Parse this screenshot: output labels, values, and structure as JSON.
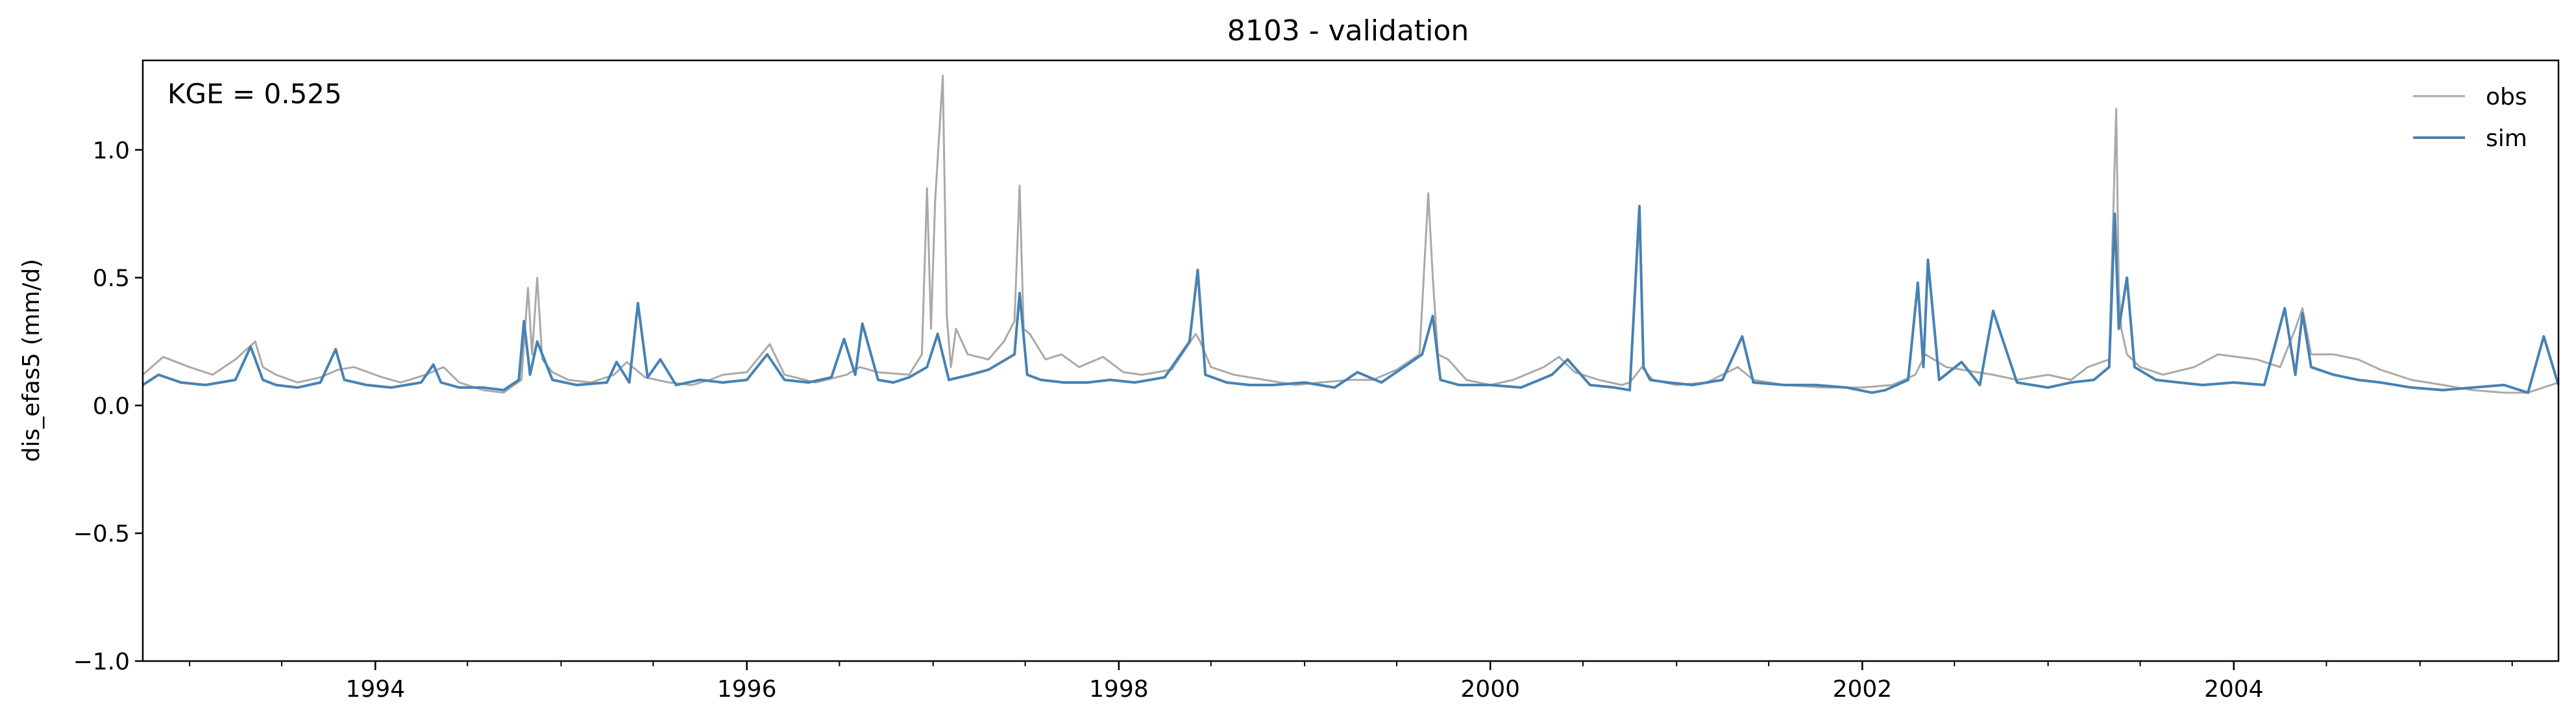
{
  "chart_data": {
    "type": "line",
    "title": "8103 - validation",
    "xlabel": "",
    "ylabel": "dis_efas5 (mm/d)",
    "annotation": "KGE = 0.525",
    "xlim": [
      "1992-10-01",
      "2005-09-30"
    ],
    "ylim": [
      -1.0,
      1.35
    ],
    "x_ticks": [
      {
        "date": "1994-01-01",
        "label": "1994"
      },
      {
        "date": "1996-01-01",
        "label": "1996"
      },
      {
        "date": "1998-01-01",
        "label": "1998"
      },
      {
        "date": "2000-01-01",
        "label": "2000"
      },
      {
        "date": "2002-01-01",
        "label": "2002"
      },
      {
        "date": "2004-01-01",
        "label": "2004"
      }
    ],
    "y_ticks": [
      {
        "value": -1.0,
        "label": "−1.0"
      },
      {
        "value": -0.5,
        "label": "−0.5"
      },
      {
        "value": 0.0,
        "label": "0.0"
      },
      {
        "value": 0.5,
        "label": "0.5"
      },
      {
        "value": 1.0,
        "label": "1.0"
      }
    ],
    "grid": false,
    "legend_position": "top-right",
    "series": [
      {
        "name": "obs",
        "color": "#a9a9a9",
        "x": [
          "1992-10-01",
          "1992-11-10",
          "1993-01-01",
          "1993-02-15",
          "1993-04-01",
          "1993-05-10",
          "1993-05-25",
          "1993-06-20",
          "1993-08-01",
          "1993-09-15",
          "1993-10-20",
          "1993-11-20",
          "1994-01-15",
          "1994-02-20",
          "1994-04-10",
          "1994-05-15",
          "1994-06-15",
          "1994-08-01",
          "1994-09-10",
          "1994-10-15",
          "1994-10-28",
          "1994-11-05",
          "1994-11-15",
          "1994-11-25",
          "1994-12-15",
          "1995-01-15",
          "1995-03-01",
          "1995-04-15",
          "1995-05-10",
          "1995-06-15",
          "1995-08-01",
          "1995-09-15",
          "1995-10-20",
          "1995-11-15",
          "1996-01-01",
          "1996-02-15",
          "1996-03-15",
          "1996-05-15",
          "1996-07-15",
          "1996-08-10",
          "1996-09-15",
          "1996-11-15",
          "1996-12-10",
          "1996-12-20",
          "1996-12-28",
          "1997-01-05",
          "1997-01-20",
          "1997-01-28",
          "1997-02-05",
          "1997-02-15",
          "1997-03-10",
          "1997-04-20",
          "1997-05-20",
          "1997-06-10",
          "1997-06-20",
          "1997-06-28",
          "1997-07-10",
          "1997-08-10",
          "1997-09-10",
          "1997-10-15",
          "1997-12-01",
          "1998-01-10",
          "1998-02-15",
          "1998-04-15",
          "1998-06-01",
          "1998-06-10",
          "1998-07-01",
          "1998-08-15",
          "1998-10-15",
          "1998-12-15",
          "1999-02-01",
          "1999-04-01",
          "1999-05-15",
          "1999-07-01",
          "1999-08-15",
          "1999-09-01",
          "1999-09-10",
          "1999-09-20",
          "1999-10-10",
          "1999-11-15",
          "2000-01-01",
          "2000-02-15",
          "2000-04-15",
          "2000-05-15",
          "2000-06-15",
          "2000-08-01",
          "2000-09-15",
          "2000-10-01",
          "2000-10-25",
          "2000-11-15",
          "2001-01-01",
          "2001-03-01",
          "2001-05-01",
          "2001-06-01",
          "2001-08-01",
          "2001-10-15",
          "2002-01-01",
          "2002-03-01",
          "2002-04-15",
          "2002-05-05",
          "2002-06-15",
          "2002-08-15",
          "2002-09-15",
          "2002-11-01",
          "2003-01-01",
          "2003-02-15",
          "2003-03-20",
          "2003-05-01",
          "2003-05-15",
          "2003-05-20",
          "2003-05-25",
          "2003-06-05",
          "2003-07-01",
          "2003-08-15",
          "2003-10-15",
          "2003-12-01",
          "2004-02-15",
          "2004-04-01",
          "2004-05-01",
          "2004-05-15",
          "2004-06-01",
          "2004-07-15",
          "2004-09-01",
          "2004-10-15",
          "2004-12-15",
          "2005-02-15",
          "2005-04-15",
          "2005-06-15",
          "2005-08-01",
          "2005-09-30"
        ],
        "values": [
          0.12,
          0.19,
          0.15,
          0.12,
          0.18,
          0.25,
          0.15,
          0.12,
          0.09,
          0.11,
          0.14,
          0.15,
          0.11,
          0.09,
          0.12,
          0.15,
          0.09,
          0.06,
          0.05,
          0.1,
          0.46,
          0.2,
          0.5,
          0.18,
          0.13,
          0.1,
          0.09,
          0.12,
          0.17,
          0.11,
          0.09,
          0.08,
          0.1,
          0.12,
          0.13,
          0.24,
          0.12,
          0.09,
          0.12,
          0.15,
          0.13,
          0.12,
          0.2,
          0.85,
          0.3,
          0.8,
          1.29,
          0.35,
          0.15,
          0.3,
          0.2,
          0.18,
          0.25,
          0.33,
          0.86,
          0.3,
          0.28,
          0.18,
          0.2,
          0.15,
          0.19,
          0.13,
          0.12,
          0.14,
          0.28,
          0.25,
          0.15,
          0.12,
          0.1,
          0.08,
          0.09,
          0.1,
          0.1,
          0.14,
          0.2,
          0.83,
          0.5,
          0.2,
          0.18,
          0.1,
          0.08,
          0.1,
          0.15,
          0.19,
          0.13,
          0.1,
          0.08,
          0.09,
          0.15,
          0.1,
          0.08,
          0.09,
          0.15,
          0.1,
          0.08,
          0.07,
          0.07,
          0.08,
          0.12,
          0.2,
          0.15,
          0.13,
          0.12,
          0.1,
          0.12,
          0.1,
          0.15,
          0.18,
          1.16,
          0.45,
          0.3,
          0.2,
          0.15,
          0.12,
          0.15,
          0.2,
          0.18,
          0.15,
          0.3,
          0.38,
          0.2,
          0.2,
          0.18,
          0.14,
          0.1,
          0.08,
          0.06,
          0.05,
          0.05,
          0.09
        ]
      },
      {
        "name": "sim",
        "color": "#4682b4",
        "x": [
          "1992-10-01",
          "1992-11-01",
          "1992-12-15",
          "1993-02-01",
          "1993-04-01",
          "1993-05-01",
          "1993-05-25",
          "1993-06-20",
          "1993-08-01",
          "1993-09-15",
          "1993-10-15",
          "1993-11-01",
          "1993-12-15",
          "1994-02-01",
          "1994-04-01",
          "1994-04-25",
          "1994-05-10",
          "1994-06-15",
          "1994-08-01",
          "1994-09-10",
          "1994-10-10",
          "1994-10-20",
          "1994-11-01",
          "1994-11-15",
          "1994-12-15",
          "1995-02-01",
          "1995-04-01",
          "1995-04-20",
          "1995-05-15",
          "1995-06-01",
          "1995-06-20",
          "1995-07-15",
          "1995-08-15",
          "1995-10-01",
          "1995-11-15",
          "1996-01-01",
          "1996-02-10",
          "1996-03-15",
          "1996-05-01",
          "1996-06-15",
          "1996-07-10",
          "1996-08-01",
          "1996-08-15",
          "1996-09-15",
          "1996-10-15",
          "1996-11-15",
          "1996-12-20",
          "1997-01-10",
          "1997-02-01",
          "1997-03-15",
          "1997-04-20",
          "1997-06-10",
          "1997-06-20",
          "1997-07-05",
          "1997-08-01",
          "1997-09-15",
          "1997-11-01",
          "1997-12-15",
          "1998-02-01",
          "1998-04-01",
          "1998-05-20",
          "1998-06-05",
          "1998-06-20",
          "1998-08-01",
          "1998-09-15",
          "1998-11-01",
          "1999-01-01",
          "1999-03-01",
          "1999-04-15",
          "1999-06-01",
          "1999-07-15",
          "1999-08-20",
          "1999-09-10",
          "1999-09-25",
          "1999-11-01",
          "2000-01-01",
          "2000-03-01",
          "2000-05-01",
          "2000-06-01",
          "2000-07-15",
          "2000-09-01",
          "2000-10-01",
          "2000-10-20",
          "2000-10-28",
          "2000-11-10",
          "2000-12-15",
          "2001-02-01",
          "2001-04-01",
          "2001-05-10",
          "2001-06-01",
          "2001-08-01",
          "2001-10-01",
          "2001-12-01",
          "2002-01-20",
          "2002-02-15",
          "2002-04-01",
          "2002-04-20",
          "2002-05-01",
          "2002-05-10",
          "2002-06-01",
          "2002-07-15",
          "2002-08-20",
          "2002-09-15",
          "2002-11-01",
          "2003-01-01",
          "2003-02-15",
          "2003-04-01",
          "2003-05-01",
          "2003-05-12",
          "2003-05-20",
          "2003-06-05",
          "2003-06-20",
          "2003-08-01",
          "2003-09-15",
          "2003-11-01",
          "2004-01-01",
          "2004-03-01",
          "2004-04-10",
          "2004-05-01",
          "2004-05-15",
          "2004-06-01",
          "2004-07-15",
          "2004-09-01",
          "2004-10-15",
          "2004-12-15",
          "2005-02-15",
          "2005-04-15",
          "2005-06-15",
          "2005-08-01",
          "2005-09-01",
          "2005-09-30"
        ],
        "values": [
          0.08,
          0.12,
          0.09,
          0.08,
          0.1,
          0.23,
          0.1,
          0.08,
          0.07,
          0.09,
          0.22,
          0.1,
          0.08,
          0.07,
          0.09,
          0.16,
          0.09,
          0.07,
          0.07,
          0.06,
          0.1,
          0.33,
          0.12,
          0.25,
          0.1,
          0.08,
          0.09,
          0.17,
          0.09,
          0.4,
          0.11,
          0.18,
          0.08,
          0.1,
          0.09,
          0.1,
          0.2,
          0.1,
          0.09,
          0.11,
          0.26,
          0.12,
          0.32,
          0.1,
          0.09,
          0.11,
          0.15,
          0.28,
          0.1,
          0.12,
          0.14,
          0.2,
          0.44,
          0.12,
          0.1,
          0.09,
          0.09,
          0.1,
          0.09,
          0.11,
          0.25,
          0.53,
          0.12,
          0.09,
          0.08,
          0.08,
          0.09,
          0.07,
          0.13,
          0.09,
          0.15,
          0.2,
          0.35,
          0.1,
          0.08,
          0.08,
          0.07,
          0.12,
          0.18,
          0.08,
          0.07,
          0.06,
          0.78,
          0.15,
          0.1,
          0.09,
          0.08,
          0.1,
          0.27,
          0.09,
          0.08,
          0.08,
          0.07,
          0.05,
          0.06,
          0.1,
          0.48,
          0.15,
          0.57,
          0.1,
          0.17,
          0.08,
          0.37,
          0.09,
          0.07,
          0.09,
          0.1,
          0.15,
          0.75,
          0.3,
          0.5,
          0.15,
          0.1,
          0.09,
          0.08,
          0.09,
          0.08,
          0.38,
          0.12,
          0.36,
          0.15,
          0.12,
          0.1,
          0.09,
          0.07,
          0.06,
          0.07,
          0.08,
          0.05,
          0.27,
          0.08
        ]
      }
    ]
  }
}
